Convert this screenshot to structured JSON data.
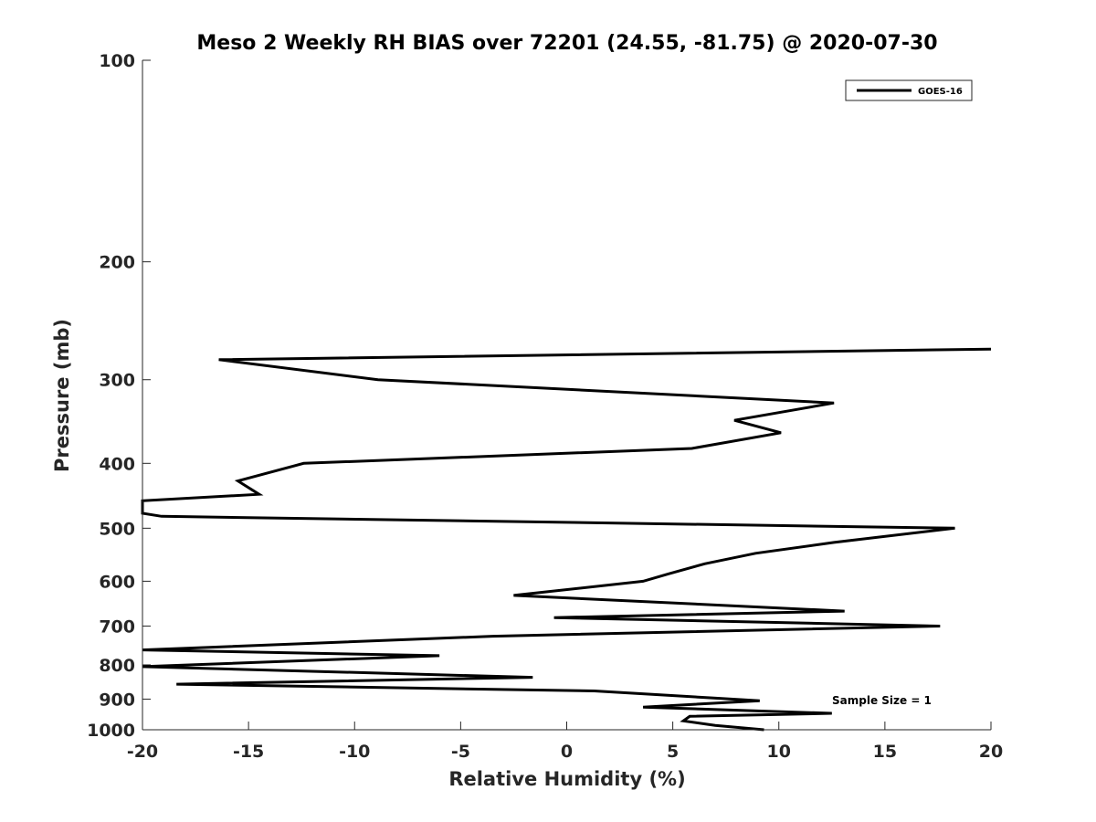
{
  "chart_data": {
    "type": "line",
    "title": "Meso 2 Weekly RH BIAS over 72201 (24.55, -81.75) @ 2020-07-30",
    "xlabel": "Relative Humidity (%)",
    "ylabel": "Pressure (mb)",
    "xlim": [
      -20,
      20
    ],
    "ylim": [
      100,
      1000
    ],
    "y_scale": "log",
    "y_reversed": true,
    "x_ticks": [
      -20,
      -15,
      -10,
      -5,
      0,
      5,
      10,
      15,
      20
    ],
    "y_ticks": [
      100,
      200,
      300,
      400,
      500,
      600,
      700,
      800,
      900,
      1000
    ],
    "grid": false,
    "legend": {
      "placement": "top-right",
      "entries": [
        "GOES-16"
      ]
    },
    "annotation": "Sample Size = 1",
    "series": [
      {
        "name": "GOES-16",
        "color": "#000000",
        "points": [
          [
            9.3,
            1000
          ],
          [
            7.0,
            985
          ],
          [
            5.5,
            970
          ],
          [
            5.8,
            955
          ],
          [
            12.5,
            945
          ],
          [
            3.6,
            925
          ],
          [
            9.1,
            905
          ],
          [
            1.3,
            875
          ],
          [
            -18.4,
            855
          ],
          [
            -1.6,
            835
          ],
          [
            -20.0,
            805
          ],
          [
            -6.0,
            775
          ],
          [
            -20.0,
            760
          ],
          [
            -3.5,
            725
          ],
          [
            17.6,
            700
          ],
          [
            -0.6,
            680
          ],
          [
            13.1,
            665
          ],
          [
            -2.5,
            630
          ],
          [
            3.6,
            600
          ],
          [
            4.8,
            585
          ],
          [
            6.5,
            565
          ],
          [
            8.9,
            545
          ],
          [
            12.6,
            525
          ],
          [
            18.3,
            500
          ],
          [
            -19.1,
            480
          ],
          [
            -20.0,
            475
          ],
          [
            -20.0,
            455
          ],
          [
            -14.5,
            445
          ],
          [
            -15.5,
            425
          ],
          [
            -12.4,
            400
          ],
          [
            5.9,
            380
          ],
          [
            10.1,
            360
          ],
          [
            7.9,
            345
          ],
          [
            12.6,
            325
          ],
          [
            -8.9,
            300
          ],
          [
            -16.4,
            280
          ],
          [
            20.0,
            270
          ]
        ]
      }
    ]
  }
}
